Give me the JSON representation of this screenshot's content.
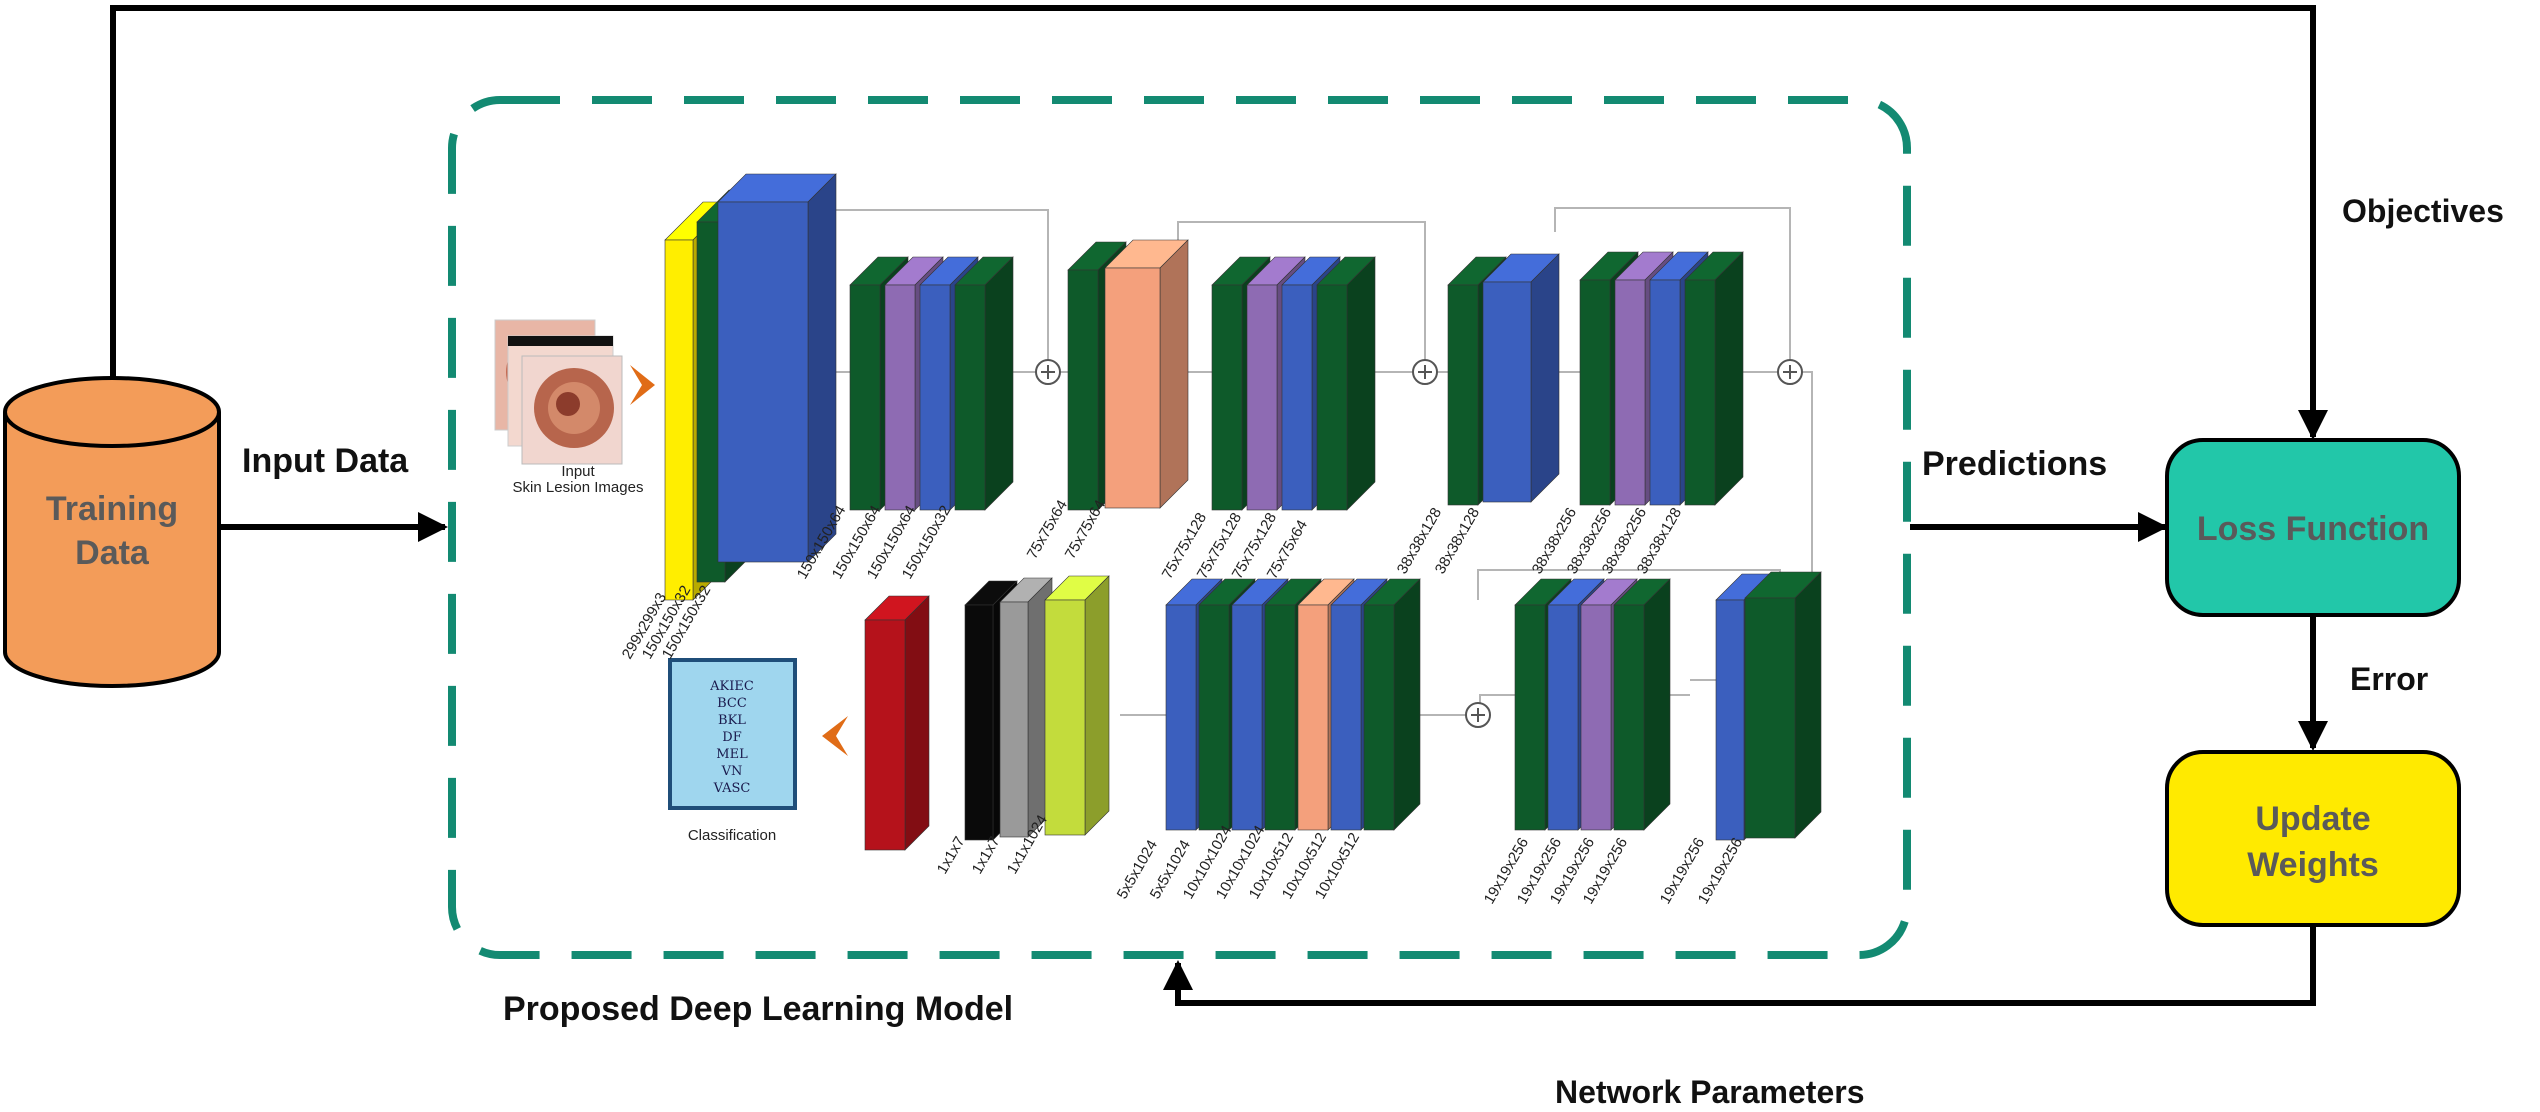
{
  "colors": {
    "training_data": "#f39c59",
    "loss_function": "#22c7a9",
    "update_weights": "#ffea00",
    "dashed_border": "#138a72",
    "input_layer": "#ffee00",
    "conv_green": "#0e5a2a",
    "conv_blue": "#3b5fbe",
    "conv_purple": "#8e6bb3",
    "conv_salmon": "#f4a07c",
    "dense_red": "#b5121b",
    "pool_black": "#0a0a0a",
    "pool_gray": "#9a9a9a",
    "dense_lime": "#c3dc3c",
    "output_box": "#9fd6ee",
    "chevron": "#e06c17"
  },
  "labels": {
    "training_data": "Training Data",
    "input_data": "Input Data",
    "objectives": "Objectives",
    "predictions": "Predictions",
    "loss_function": "Loss Function",
    "error": "Error",
    "update_weights": "Update Weights",
    "model_title": "Proposed Deep Learning Model",
    "network_parameters": "Network Parameters"
  },
  "network": {
    "input_caption_1": "Input",
    "input_caption_2": "Skin Lesion Images",
    "classification_caption": "Classification",
    "classes": [
      "AKIEC",
      "BCC",
      "BKL",
      "DF",
      "MEL",
      "VN",
      "VASC"
    ],
    "stem_sizes": [
      "299x299x3",
      "150x150x32",
      "150x150x32"
    ],
    "block1_sizes": [
      "150x150x64",
      "150x150x64",
      "150x150x64",
      "150x150x32"
    ],
    "block2_sizes": [
      "75x75x64",
      "75x75x64"
    ],
    "block3_sizes": [
      "75x75x128",
      "75x75x128",
      "75x75x128",
      "75x75x64"
    ],
    "block4_sizes": [
      "38x38x128",
      "38x38x128"
    ],
    "block5_sizes": [
      "38x38x256",
      "38x38x256",
      "38x38x256",
      "38x38x128"
    ],
    "row2_block1_sizes": [
      "19x19x256",
      "19x19x256"
    ],
    "row2_block2_sizes": [
      "19x19x256",
      "19x19x256",
      "19x19x256",
      "19x19x256"
    ],
    "row2_block3_sizes": [
      "5x5x1024",
      "5x5x1024",
      "10x10x1024",
      "10x10x1024",
      "10x10x512",
      "10x10x512",
      "10x10x512"
    ],
    "row2_head_sizes": [
      "1x1x7",
      "1x1x7",
      "1x1x1024"
    ]
  }
}
